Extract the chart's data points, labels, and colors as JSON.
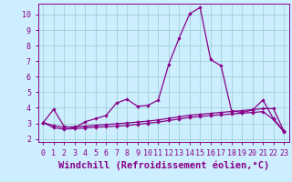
{
  "xlabel": "Windchill (Refroidissement éolien,°C)",
  "background_color": "#cceeff",
  "line_color": "#880088",
  "grid_color": "#99cccc",
  "xlim": [
    -0.5,
    23.5
  ],
  "ylim": [
    1.8,
    10.7
  ],
  "xticks": [
    0,
    1,
    2,
    3,
    4,
    5,
    6,
    7,
    8,
    9,
    10,
    11,
    12,
    13,
    14,
    15,
    16,
    17,
    18,
    19,
    20,
    21,
    22,
    23
  ],
  "yticks": [
    2,
    3,
    4,
    5,
    6,
    7,
    8,
    9,
    10
  ],
  "series1_x": [
    0,
    1,
    2,
    3,
    4,
    5,
    6,
    7,
    8,
    9,
    10,
    11,
    12,
    13,
    14,
    15,
    16,
    17,
    18,
    19,
    20,
    21,
    22,
    23
  ],
  "series1_y": [
    3.05,
    3.9,
    2.8,
    2.7,
    3.1,
    3.3,
    3.5,
    4.3,
    4.55,
    4.1,
    4.15,
    4.5,
    6.8,
    8.5,
    10.05,
    10.45,
    7.1,
    6.7,
    3.8,
    3.7,
    3.85,
    4.5,
    3.3,
    2.5
  ],
  "series2_x": [
    0,
    1,
    2,
    3,
    4,
    5,
    6,
    7,
    8,
    9,
    10,
    11,
    12,
    13,
    14,
    15,
    16,
    17,
    18,
    19,
    20,
    21,
    22,
    23
  ],
  "series2_y": [
    3.05,
    2.85,
    2.75,
    2.78,
    2.82,
    2.87,
    2.92,
    2.97,
    3.02,
    3.08,
    3.14,
    3.22,
    3.32,
    3.42,
    3.52,
    3.58,
    3.64,
    3.7,
    3.76,
    3.82,
    3.88,
    3.94,
    3.95,
    2.5
  ],
  "series3_x": [
    0,
    1,
    2,
    3,
    4,
    5,
    6,
    7,
    8,
    9,
    10,
    11,
    12,
    13,
    14,
    15,
    16,
    17,
    18,
    19,
    20,
    21,
    22,
    23
  ],
  "series3_y": [
    3.05,
    2.72,
    2.63,
    2.66,
    2.7,
    2.75,
    2.78,
    2.82,
    2.86,
    2.93,
    3.0,
    3.08,
    3.18,
    3.28,
    3.38,
    3.44,
    3.5,
    3.55,
    3.6,
    3.65,
    3.7,
    3.75,
    3.25,
    2.45
  ],
  "marker": "D",
  "markersize": 2.2,
  "linewidth": 0.9,
  "tick_fontsize": 6,
  "xlabel_fontsize": 7.5
}
